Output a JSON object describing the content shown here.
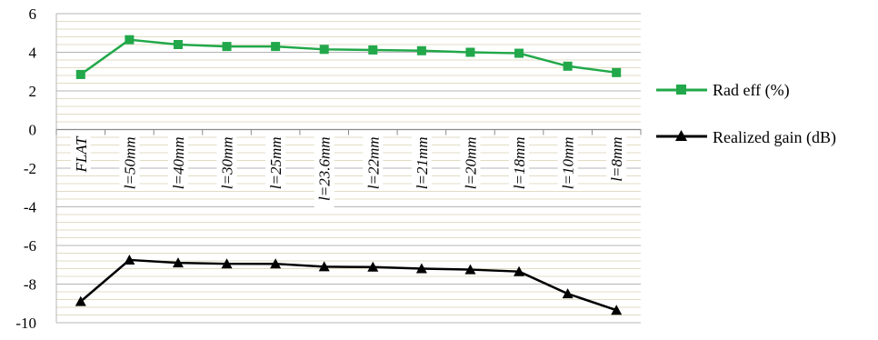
{
  "chart_data": {
    "type": "line",
    "title": "",
    "xlabel": "",
    "ylabel": "",
    "ylim": [
      -10,
      6
    ],
    "y_ticks": [
      "6",
      "4",
      "2",
      "0",
      "-2",
      "-4",
      "-6",
      "-8",
      "-10"
    ],
    "grid": true,
    "legend_position": "right",
    "categories": [
      "FLAT",
      "l=50mm",
      "l=40mm",
      "l=30mm",
      "l=25mm",
      "l=23.6mm",
      "l=22mm",
      "l=21mm",
      "l=20mm",
      "l=18mm",
      "l=10mm",
      "l=8mm"
    ],
    "series": [
      {
        "name": "Rad eff (%)",
        "color": "#22a84a",
        "marker": "square",
        "values": [
          2.85,
          4.65,
          4.4,
          4.3,
          4.3,
          4.15,
          4.12,
          4.08,
          4.0,
          3.95,
          3.28,
          2.95
        ]
      },
      {
        "name": "Realized gain (dB)",
        "color": "#000000",
        "marker": "triangle",
        "values": [
          -8.9,
          -6.75,
          -6.9,
          -6.95,
          -6.95,
          -7.1,
          -7.12,
          -7.2,
          -7.25,
          -7.35,
          -8.5,
          -9.35
        ]
      }
    ]
  }
}
